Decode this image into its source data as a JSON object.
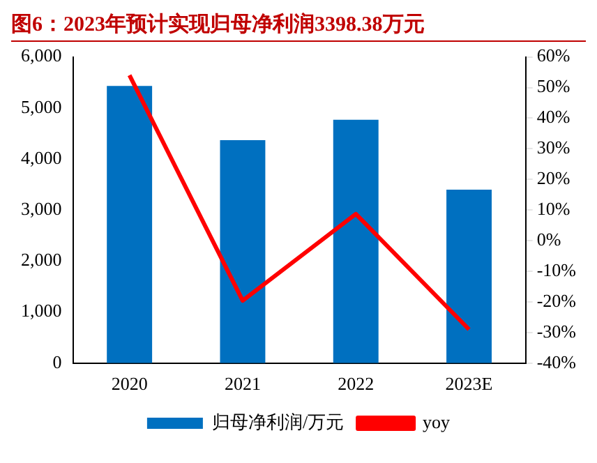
{
  "chart_data": {
    "type": "bar",
    "title": "图6：2023年预计实现归母净利润3398.38万元",
    "categories": [
      "2020",
      "2021",
      "2022",
      "2023E"
    ],
    "series": [
      {
        "name": "归母净利润/万元",
        "color": "#0070c0",
        "values": [
          5430,
          4370,
          4770,
          3400
        ]
      },
      {
        "name": "yoy",
        "type": "line",
        "axis": "y2",
        "color": "#ff0000",
        "values": [
          54,
          -19.6,
          8.7,
          -29
        ]
      }
    ],
    "ylim": [
      0,
      6000
    ],
    "yticks": [
      {
        "value": 0,
        "label": "0"
      },
      {
        "value": 1000,
        "label": "1,000"
      },
      {
        "value": 2000,
        "label": "2,000"
      },
      {
        "value": 3000,
        "label": "3,000"
      },
      {
        "value": 4000,
        "label": "4,000"
      },
      {
        "value": 5000,
        "label": "5,000"
      },
      {
        "value": 6000,
        "label": "6,000"
      }
    ],
    "y2lim": [
      -40,
      60
    ],
    "y2ticks": [
      {
        "value": -40,
        "label": "-40%"
      },
      {
        "value": -30,
        "label": "-30%"
      },
      {
        "value": -20,
        "label": "-20%"
      },
      {
        "value": -10,
        "label": "-10%"
      },
      {
        "value": 0,
        "label": "0%"
      },
      {
        "value": 10,
        "label": "10%"
      },
      {
        "value": 20,
        "label": "20%"
      },
      {
        "value": 30,
        "label": "30%"
      },
      {
        "value": 40,
        "label": "40%"
      },
      {
        "value": 50,
        "label": "50%"
      },
      {
        "value": 60,
        "label": "60%"
      }
    ],
    "grid": false,
    "legend": "bottom",
    "marker": "none"
  }
}
